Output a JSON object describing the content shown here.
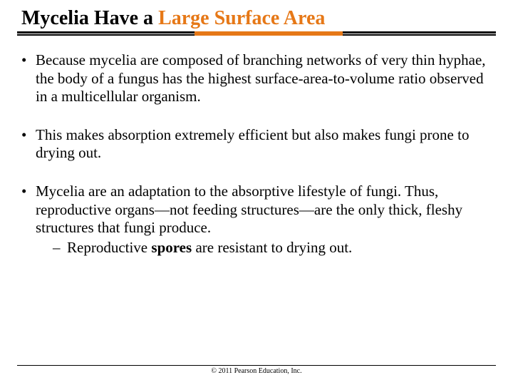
{
  "title_plain": "Mycelia Have a",
  "title_accent": " Large Surface Area",
  "accent_color": "#e67817",
  "rule_orange_left_pct": 37,
  "rule_orange_width_pct": 31,
  "bullets": [
    {
      "text": "Because mycelia are composed of branching networks of very thin hyphae, the body of a fungus has the highest surface-area-to-volume ratio observed in a multicellular organism."
    },
    {
      "text": "This makes absorption extremely efficient but also makes fungi prone to drying out."
    },
    {
      "text": "Mycelia are an adaptation to the absorptive lifestyle of fungi. Thus, reproductive organs—not feeding structures—are the only thick, fleshy structures that fungi produce.",
      "sub": [
        {
          "pre": "Reproductive ",
          "bold": "spores",
          "post": " are resistant to drying out."
        }
      ]
    }
  ],
  "copyright": "© 2011 Pearson Education, Inc."
}
